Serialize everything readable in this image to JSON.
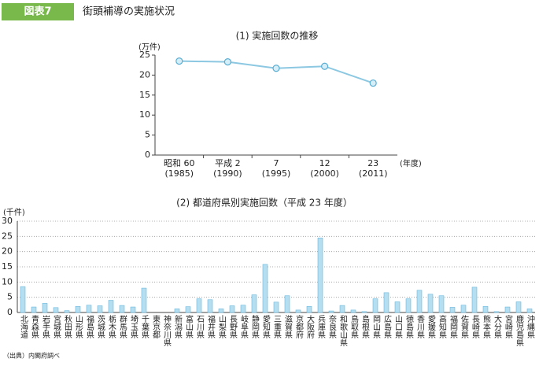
{
  "header": {
    "badge": "図表7",
    "title": "街頭補導の実施状況"
  },
  "chart_data": [
    {
      "type": "line",
      "title": "(1) 実施回数の推移",
      "ylabel": "(万件)",
      "xlabel": "(年度)",
      "categories": [
        "昭和 60\n(1985)",
        "平成 2\n(1990)",
        "7\n(1995)",
        "12\n(2000)",
        "23\n(2011)"
      ],
      "values": [
        23.5,
        23.3,
        21.7,
        22.2,
        18.0
      ],
      "color": "#8cc8e2",
      "ylim": [
        0,
        25
      ],
      "yticks": [
        0,
        5,
        10,
        15,
        20,
        25
      ],
      "grid": false
    },
    {
      "type": "bar",
      "title": "(2) 都道府県別実施回数（平成 23 年度）",
      "ylabel": "(千件)",
      "categories": [
        "北海道",
        "青森県",
        "岩手県",
        "宮城県",
        "秋田県",
        "山形県",
        "福島県",
        "茨城県",
        "栃木県",
        "群馬県",
        "埼玉県",
        "千葉県",
        "東京都",
        "神奈川県",
        "新潟県",
        "富山県",
        "石川県",
        "福井県",
        "山梨県",
        "長野県",
        "岐阜県",
        "静岡県",
        "愛知県",
        "三重県",
        "滋賀県",
        "京都府",
        "大阪府",
        "兵庫県",
        "奈良県",
        "和歌山県",
        "鳥取県",
        "島根県",
        "岡山県",
        "広島県",
        "山口県",
        "徳島県",
        "香川県",
        "愛媛県",
        "高知県",
        "福岡県",
        "佐賀県",
        "長崎県",
        "熊本県",
        "大分県",
        "宮崎県",
        "鹿児島県",
        "沖縄県"
      ],
      "values": [
        8.5,
        1.8,
        3.0,
        1.6,
        0.6,
        2.0,
        2.4,
        2.2,
        4.0,
        2.3,
        1.8,
        8.0,
        0,
        0,
        1.2,
        1.9,
        4.5,
        4.2,
        1.2,
        2.2,
        2.4,
        5.8,
        15.8,
        3.4,
        5.5,
        0.8,
        2.0,
        24.5,
        0.5,
        2.3,
        0.8,
        0.3,
        4.5,
        6.5,
        3.5,
        4.5,
        7.3,
        6.0,
        5.5,
        1.7,
        2.4,
        8.3,
        2.0,
        0.3,
        1.8,
        3.5,
        1.2
      ],
      "color": "#b5def0",
      "ylim": [
        0,
        30
      ],
      "yticks": [
        0,
        5,
        10,
        15,
        20,
        25,
        30
      ],
      "grid": true
    }
  ],
  "source": "（出典）内閣府調べ"
}
